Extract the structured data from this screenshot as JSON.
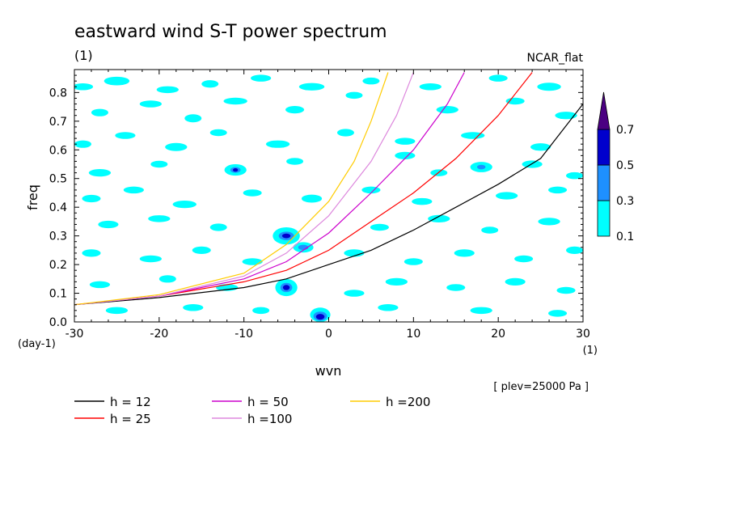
{
  "chart_data": {
    "type": "heatmap",
    "title": "eastward wind S-T power spectrum",
    "subtitle_left": "(1)",
    "subtitle_right": "NCAR_flat",
    "xlabel": "wvn",
    "ylabel": "freq",
    "x_unit": "(1)",
    "y_unit": "(day-1)",
    "xlim": [
      -30,
      30
    ],
    "ylim": [
      0,
      0.88
    ],
    "x_ticks": [
      -30,
      -20,
      -10,
      0,
      10,
      20,
      30
    ],
    "y_ticks": [
      0.0,
      0.1,
      0.2,
      0.3,
      0.4,
      0.5,
      0.6,
      0.7,
      0.8
    ],
    "x_tick_labels": [
      "-30",
      "-20",
      "-10",
      "0",
      "10",
      "20",
      "30"
    ],
    "y_tick_labels": [
      "0.0",
      "0.1",
      "0.2",
      "0.3",
      "0.4",
      "0.5",
      "0.6",
      "0.7",
      "0.8"
    ],
    "colorbar": {
      "levels": [
        "0.1",
        "0.3",
        "0.5",
        "0.7"
      ],
      "colors": [
        "#00ffff",
        "#1e90ff",
        "#0000cd",
        "#4b0082"
      ],
      "extend": "max"
    },
    "annotation": "[ plev=25000 Pa ]",
    "dispersion_curves": [
      {
        "label": "h = 12",
        "h": 12,
        "color": "#000000",
        "points": [
          [
            -30,
            0.06
          ],
          [
            -20,
            0.085
          ],
          [
            -10,
            0.12
          ],
          [
            -5,
            0.15
          ],
          [
            0,
            0.2
          ],
          [
            5,
            0.25
          ],
          [
            10,
            0.32
          ],
          [
            15,
            0.4
          ],
          [
            20,
            0.48
          ],
          [
            25,
            0.57
          ],
          [
            30,
            0.76
          ]
        ]
      },
      {
        "label": "h = 25",
        "h": 25,
        "color": "#ff0000",
        "points": [
          [
            -30,
            0.06
          ],
          [
            -20,
            0.09
          ],
          [
            -10,
            0.14
          ],
          [
            -5,
            0.18
          ],
          [
            0,
            0.25
          ],
          [
            5,
            0.35
          ],
          [
            10,
            0.45
          ],
          [
            15,
            0.57
          ],
          [
            20,
            0.72
          ],
          [
            24,
            0.87
          ]
        ]
      },
      {
        "label": "h = 50",
        "h": 50,
        "color": "#cc00cc",
        "points": [
          [
            -30,
            0.06
          ],
          [
            -20,
            0.09
          ],
          [
            -10,
            0.15
          ],
          [
            -5,
            0.21
          ],
          [
            0,
            0.31
          ],
          [
            5,
            0.45
          ],
          [
            10,
            0.6
          ],
          [
            14,
            0.76
          ],
          [
            16,
            0.87
          ]
        ]
      },
      {
        "label": "h =100",
        "h": 100,
        "color": "#dd88dd",
        "points": [
          [
            -30,
            0.06
          ],
          [
            -20,
            0.09
          ],
          [
            -10,
            0.16
          ],
          [
            -5,
            0.24
          ],
          [
            0,
            0.37
          ],
          [
            5,
            0.56
          ],
          [
            8,
            0.72
          ],
          [
            10,
            0.87
          ]
        ]
      },
      {
        "label": "h =200",
        "h": 200,
        "color": "#ffcc00",
        "points": [
          [
            -30,
            0.06
          ],
          [
            -20,
            0.095
          ],
          [
            -10,
            0.17
          ],
          [
            -5,
            0.27
          ],
          [
            0,
            0.42
          ],
          [
            3,
            0.56
          ],
          [
            5,
            0.7
          ],
          [
            7,
            0.87
          ]
        ]
      }
    ],
    "contour_patches": [
      {
        "x": -29,
        "y": 0.82,
        "rx": 1.2,
        "ry": 0.012,
        "level": 1
      },
      {
        "x": -25,
        "y": 0.84,
        "rx": 1.5,
        "ry": 0.015,
        "level": 1
      },
      {
        "x": -19,
        "y": 0.81,
        "rx": 1.3,
        "ry": 0.012,
        "level": 1
      },
      {
        "x": -14,
        "y": 0.83,
        "rx": 1.0,
        "ry": 0.013,
        "level": 1
      },
      {
        "x": -8,
        "y": 0.85,
        "rx": 1.2,
        "ry": 0.012,
        "level": 1
      },
      {
        "x": -2,
        "y": 0.82,
        "rx": 1.5,
        "ry": 0.013,
        "level": 1
      },
      {
        "x": 5,
        "y": 0.84,
        "rx": 1.0,
        "ry": 0.012,
        "level": 1
      },
      {
        "x": 12,
        "y": 0.82,
        "rx": 1.3,
        "ry": 0.012,
        "level": 1
      },
      {
        "x": 20,
        "y": 0.85,
        "rx": 1.1,
        "ry": 0.012,
        "level": 1
      },
      {
        "x": 26,
        "y": 0.82,
        "rx": 1.4,
        "ry": 0.014,
        "level": 1
      },
      {
        "x": -27,
        "y": 0.73,
        "rx": 1.0,
        "ry": 0.013,
        "level": 1
      },
      {
        "x": -21,
        "y": 0.76,
        "rx": 1.3,
        "ry": 0.012,
        "level": 1
      },
      {
        "x": -16,
        "y": 0.71,
        "rx": 1.0,
        "ry": 0.014,
        "level": 1
      },
      {
        "x": -11,
        "y": 0.77,
        "rx": 1.4,
        "ry": 0.012,
        "level": 1
      },
      {
        "x": -4,
        "y": 0.74,
        "rx": 1.1,
        "ry": 0.013,
        "level": 1
      },
      {
        "x": 3,
        "y": 0.79,
        "rx": 1.0,
        "ry": 0.012,
        "level": 1
      },
      {
        "x": 14,
        "y": 0.74,
        "rx": 1.3,
        "ry": 0.013,
        "level": 1
      },
      {
        "x": 22,
        "y": 0.77,
        "rx": 1.1,
        "ry": 0.012,
        "level": 1
      },
      {
        "x": 28,
        "y": 0.72,
        "rx": 1.3,
        "ry": 0.013,
        "level": 1
      },
      {
        "x": -29,
        "y": 0.62,
        "rx": 1.0,
        "ry": 0.013,
        "level": 1
      },
      {
        "x": -24,
        "y": 0.65,
        "rx": 1.2,
        "ry": 0.012,
        "level": 1
      },
      {
        "x": -18,
        "y": 0.61,
        "rx": 1.3,
        "ry": 0.014,
        "level": 1
      },
      {
        "x": -13,
        "y": 0.66,
        "rx": 1.0,
        "ry": 0.012,
        "level": 1
      },
      {
        "x": -6,
        "y": 0.62,
        "rx": 1.4,
        "ry": 0.013,
        "level": 1
      },
      {
        "x": 2,
        "y": 0.66,
        "rx": 1.0,
        "ry": 0.013,
        "level": 1
      },
      {
        "x": 9,
        "y": 0.63,
        "rx": 1.2,
        "ry": 0.012,
        "level": 1
      },
      {
        "x": 17,
        "y": 0.65,
        "rx": 1.4,
        "ry": 0.012,
        "level": 1
      },
      {
        "x": 25,
        "y": 0.61,
        "rx": 1.2,
        "ry": 0.013,
        "level": 1
      },
      {
        "x": -27,
        "y": 0.52,
        "rx": 1.3,
        "ry": 0.013,
        "level": 1
      },
      {
        "x": -20,
        "y": 0.55,
        "rx": 1.0,
        "ry": 0.012,
        "level": 1
      },
      {
        "x": -11,
        "y": 0.53,
        "rx": 1.3,
        "ry": 0.02,
        "level": 1
      },
      {
        "x": -11,
        "y": 0.53,
        "rx": 0.6,
        "ry": 0.01,
        "level": 2
      },
      {
        "x": -11,
        "y": 0.53,
        "rx": 0.3,
        "ry": 0.006,
        "level": 3
      },
      {
        "x": -4,
        "y": 0.56,
        "rx": 1.0,
        "ry": 0.012,
        "level": 1
      },
      {
        "x": 9,
        "y": 0.58,
        "rx": 1.2,
        "ry": 0.013,
        "level": 1
      },
      {
        "x": 13,
        "y": 0.52,
        "rx": 1.0,
        "ry": 0.012,
        "level": 1
      },
      {
        "x": 18,
        "y": 0.54,
        "rx": 1.3,
        "ry": 0.018,
        "level": 1
      },
      {
        "x": 18,
        "y": 0.54,
        "rx": 0.5,
        "ry": 0.008,
        "level": 2
      },
      {
        "x": 24,
        "y": 0.55,
        "rx": 1.2,
        "ry": 0.013,
        "level": 1
      },
      {
        "x": 29,
        "y": 0.51,
        "rx": 1.0,
        "ry": 0.012,
        "level": 1
      },
      {
        "x": -28,
        "y": 0.43,
        "rx": 1.1,
        "ry": 0.013,
        "level": 1
      },
      {
        "x": -23,
        "y": 0.46,
        "rx": 1.2,
        "ry": 0.012,
        "level": 1
      },
      {
        "x": -17,
        "y": 0.41,
        "rx": 1.4,
        "ry": 0.013,
        "level": 1
      },
      {
        "x": -9,
        "y": 0.45,
        "rx": 1.1,
        "ry": 0.012,
        "level": 1
      },
      {
        "x": -2,
        "y": 0.43,
        "rx": 1.2,
        "ry": 0.014,
        "level": 1
      },
      {
        "x": 5,
        "y": 0.46,
        "rx": 1.1,
        "ry": 0.012,
        "level": 1
      },
      {
        "x": 11,
        "y": 0.42,
        "rx": 1.2,
        "ry": 0.012,
        "level": 1
      },
      {
        "x": 21,
        "y": 0.44,
        "rx": 1.3,
        "ry": 0.013,
        "level": 1
      },
      {
        "x": 27,
        "y": 0.46,
        "rx": 1.1,
        "ry": 0.012,
        "level": 1
      },
      {
        "x": -26,
        "y": 0.34,
        "rx": 1.2,
        "ry": 0.013,
        "level": 1
      },
      {
        "x": -20,
        "y": 0.36,
        "rx": 1.3,
        "ry": 0.012,
        "level": 1
      },
      {
        "x": -13,
        "y": 0.33,
        "rx": 1.0,
        "ry": 0.013,
        "level": 1
      },
      {
        "x": -5,
        "y": 0.3,
        "rx": 1.6,
        "ry": 0.03,
        "level": 1
      },
      {
        "x": -5,
        "y": 0.3,
        "rx": 0.9,
        "ry": 0.015,
        "level": 2
      },
      {
        "x": -5,
        "y": 0.3,
        "rx": 0.5,
        "ry": 0.008,
        "level": 3
      },
      {
        "x": -3,
        "y": 0.26,
        "rx": 1.2,
        "ry": 0.018,
        "level": 1
      },
      {
        "x": -3,
        "y": 0.26,
        "rx": 0.6,
        "ry": 0.009,
        "level": 2
      },
      {
        "x": 6,
        "y": 0.33,
        "rx": 1.1,
        "ry": 0.012,
        "level": 1
      },
      {
        "x": 13,
        "y": 0.36,
        "rx": 1.3,
        "ry": 0.013,
        "level": 1
      },
      {
        "x": 19,
        "y": 0.32,
        "rx": 1.0,
        "ry": 0.012,
        "level": 1
      },
      {
        "x": 26,
        "y": 0.35,
        "rx": 1.3,
        "ry": 0.013,
        "level": 1
      },
      {
        "x": -28,
        "y": 0.24,
        "rx": 1.1,
        "ry": 0.013,
        "level": 1
      },
      {
        "x": -21,
        "y": 0.22,
        "rx": 1.3,
        "ry": 0.012,
        "level": 1
      },
      {
        "x": -15,
        "y": 0.25,
        "rx": 1.1,
        "ry": 0.013,
        "level": 1
      },
      {
        "x": -9,
        "y": 0.21,
        "rx": 1.2,
        "ry": 0.012,
        "level": 1
      },
      {
        "x": 3,
        "y": 0.24,
        "rx": 1.2,
        "ry": 0.013,
        "level": 1
      },
      {
        "x": 10,
        "y": 0.21,
        "rx": 1.1,
        "ry": 0.012,
        "level": 1
      },
      {
        "x": 16,
        "y": 0.24,
        "rx": 1.2,
        "ry": 0.013,
        "level": 1
      },
      {
        "x": 23,
        "y": 0.22,
        "rx": 1.1,
        "ry": 0.012,
        "level": 1
      },
      {
        "x": 29,
        "y": 0.25,
        "rx": 1.0,
        "ry": 0.013,
        "level": 1
      },
      {
        "x": -27,
        "y": 0.13,
        "rx": 1.2,
        "ry": 0.012,
        "level": 1
      },
      {
        "x": -19,
        "y": 0.15,
        "rx": 1.0,
        "ry": 0.013,
        "level": 1
      },
      {
        "x": -12,
        "y": 0.12,
        "rx": 1.3,
        "ry": 0.012,
        "level": 1
      },
      {
        "x": -5,
        "y": 0.12,
        "rx": 1.3,
        "ry": 0.03,
        "level": 1
      },
      {
        "x": -5,
        "y": 0.12,
        "rx": 0.7,
        "ry": 0.016,
        "level": 2
      },
      {
        "x": -5,
        "y": 0.12,
        "rx": 0.4,
        "ry": 0.009,
        "level": 3
      },
      {
        "x": 3,
        "y": 0.1,
        "rx": 1.2,
        "ry": 0.012,
        "level": 1
      },
      {
        "x": 8,
        "y": 0.14,
        "rx": 1.3,
        "ry": 0.013,
        "level": 1
      },
      {
        "x": 15,
        "y": 0.12,
        "rx": 1.1,
        "ry": 0.012,
        "level": 1
      },
      {
        "x": 22,
        "y": 0.14,
        "rx": 1.2,
        "ry": 0.013,
        "level": 1
      },
      {
        "x": 28,
        "y": 0.11,
        "rx": 1.1,
        "ry": 0.012,
        "level": 1
      },
      {
        "x": -25,
        "y": 0.04,
        "rx": 1.3,
        "ry": 0.012,
        "level": 1
      },
      {
        "x": -16,
        "y": 0.05,
        "rx": 1.2,
        "ry": 0.012,
        "level": 1
      },
      {
        "x": -8,
        "y": 0.04,
        "rx": 1.0,
        "ry": 0.012,
        "level": 1
      },
      {
        "x": -1,
        "y": 0.025,
        "rx": 1.2,
        "ry": 0.025,
        "level": 1
      },
      {
        "x": -1,
        "y": 0.02,
        "rx": 0.8,
        "ry": 0.016,
        "level": 2
      },
      {
        "x": -1,
        "y": 0.018,
        "rx": 0.5,
        "ry": 0.01,
        "level": 3
      },
      {
        "x": 7,
        "y": 0.05,
        "rx": 1.2,
        "ry": 0.012,
        "level": 1
      },
      {
        "x": 18,
        "y": 0.04,
        "rx": 1.3,
        "ry": 0.012,
        "level": 1
      },
      {
        "x": 27,
        "y": 0.03,
        "rx": 1.1,
        "ry": 0.012,
        "level": 1
      }
    ]
  }
}
